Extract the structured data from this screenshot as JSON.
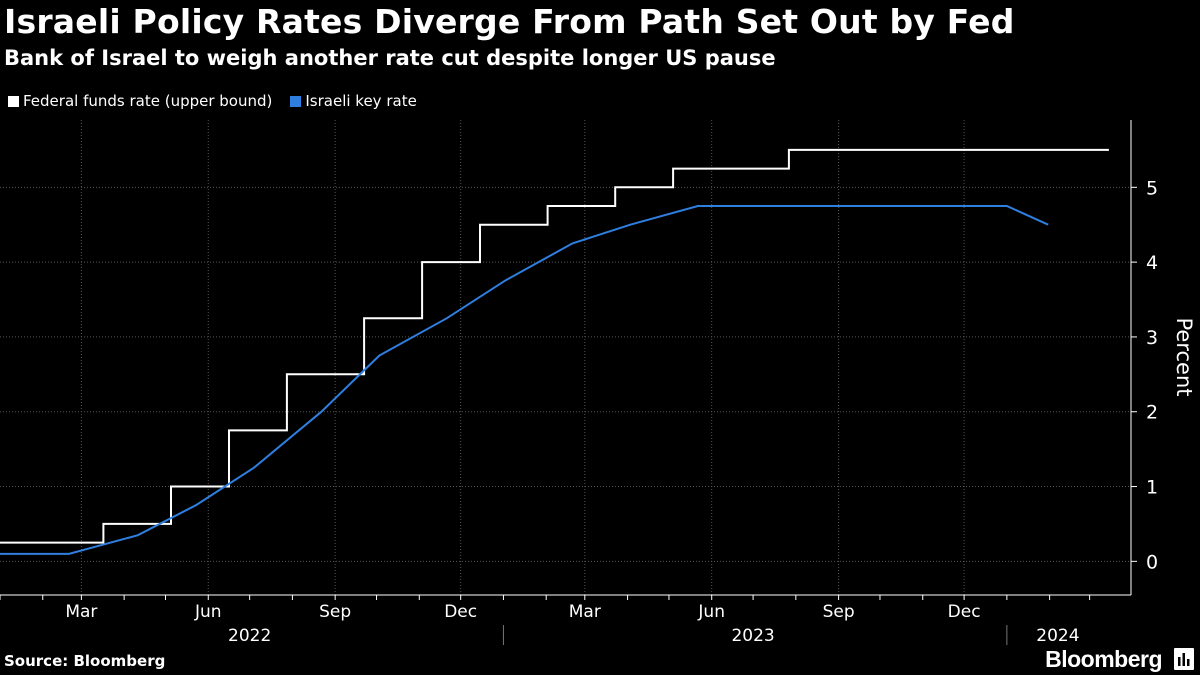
{
  "header": {
    "title": "Israeli Policy Rates Diverge From Path Set Out by Fed",
    "subtitle": "Bank of Israel to weigh another rate cut despite longer US pause"
  },
  "footer": {
    "source": "Source: Bloomberg",
    "brand": "Bloomberg"
  },
  "colors": {
    "background": "#000000",
    "fed": "#ffffff",
    "israel": "#2f7fe0",
    "grid": "#555555"
  },
  "chart_data": {
    "type": "line",
    "title": "Israeli Policy Rates Diverge From Path Set Out by Fed",
    "subtitle": "Bank of Israel to weigh another rate cut despite longer US pause",
    "xlabel": "",
    "ylabel": "Percent",
    "xlim": [
      "2022-01-01",
      "2024-03-31"
    ],
    "ylim": [
      -0.45,
      5.9
    ],
    "yticks": [
      0,
      1,
      2,
      3,
      4,
      5
    ],
    "grid": true,
    "legend_position": "top-left",
    "month_ticks": [
      {
        "label": "Mar",
        "date": "2022-03-01"
      },
      {
        "label": "Jun",
        "date": "2022-06-01"
      },
      {
        "label": "Sep",
        "date": "2022-09-01"
      },
      {
        "label": "Dec",
        "date": "2022-12-01"
      },
      {
        "label": "Mar",
        "date": "2023-03-01"
      },
      {
        "label": "Jun",
        "date": "2023-06-01"
      },
      {
        "label": "Sep",
        "date": "2023-09-01"
      },
      {
        "label": "Dec",
        "date": "2023-12-01"
      }
    ],
    "year_labels": [
      {
        "label": "2022",
        "date": "2022-07-01"
      },
      {
        "label": "2023",
        "date": "2023-07-01"
      },
      {
        "label": "2024",
        "date": "2024-02-07"
      }
    ],
    "year_separators": [
      "2023-01-01",
      "2024-01-01"
    ],
    "series": [
      {
        "name": "Federal funds rate (upper bound)",
        "color": "#ffffff",
        "step": true,
        "points": [
          [
            "2022-01-01",
            0.25
          ],
          [
            "2022-03-17",
            0.5
          ],
          [
            "2022-05-05",
            1.0
          ],
          [
            "2022-06-16",
            1.75
          ],
          [
            "2022-07-28",
            2.5
          ],
          [
            "2022-09-22",
            3.25
          ],
          [
            "2022-11-03",
            4.0
          ],
          [
            "2022-12-15",
            4.5
          ],
          [
            "2023-02-02",
            4.75
          ],
          [
            "2023-03-23",
            5.0
          ],
          [
            "2023-05-04",
            5.25
          ],
          [
            "2023-07-27",
            5.5
          ],
          [
            "2024-03-15",
            5.5
          ]
        ]
      },
      {
        "name": "Israeli key rate",
        "color": "#2f7fe0",
        "step": false,
        "points": [
          [
            "2022-01-01",
            0.1
          ],
          [
            "2022-02-20",
            0.1
          ],
          [
            "2022-04-11",
            0.35
          ],
          [
            "2022-05-23",
            0.75
          ],
          [
            "2022-07-04",
            1.25
          ],
          [
            "2022-08-22",
            2.0
          ],
          [
            "2022-10-03",
            2.75
          ],
          [
            "2022-11-21",
            3.25
          ],
          [
            "2023-01-02",
            3.75
          ],
          [
            "2023-02-20",
            4.25
          ],
          [
            "2023-04-03",
            4.5
          ],
          [
            "2023-05-22",
            4.75
          ],
          [
            "2024-01-01",
            4.75
          ],
          [
            "2024-01-31",
            4.5
          ]
        ]
      }
    ]
  }
}
